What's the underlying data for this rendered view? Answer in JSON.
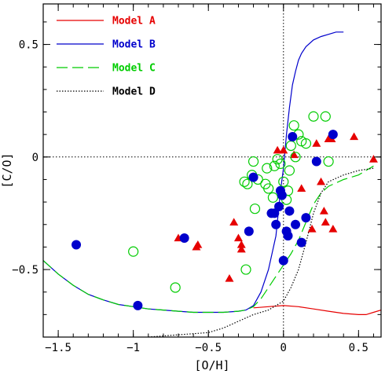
{
  "chart_data": {
    "type": "scatter",
    "title": "",
    "xlabel": "[O/H]",
    "ylabel": "[C/O]",
    "xlim": [
      -1.6,
      0.65
    ],
    "ylim": [
      -0.8,
      0.68
    ],
    "xticks": [
      -1.5,
      -1,
      -0.5,
      0,
      0.5
    ],
    "xtick_labels": [
      "−1.5",
      "−1",
      "−0.5",
      "0",
      "0.5"
    ],
    "yticks": [
      -0.5,
      0,
      0.5
    ],
    "ytick_labels": [
      "−0.5",
      "0",
      "0.5"
    ],
    "reference_lines": {
      "x": 0,
      "y": 0
    },
    "legend_position": "top-left",
    "models": [
      {
        "name": "Model A",
        "color": "#e60000",
        "dash": "solid",
        "points": [
          [
            -0.2,
            -0.67
          ],
          [
            -0.1,
            -0.665
          ],
          [
            0,
            -0.66
          ],
          [
            0.1,
            -0.665
          ],
          [
            0.2,
            -0.675
          ],
          [
            0.3,
            -0.685
          ],
          [
            0.4,
            -0.695
          ],
          [
            0.5,
            -0.7
          ],
          [
            0.55,
            -0.7
          ],
          [
            0.6,
            -0.69
          ],
          [
            0.65,
            -0.68
          ]
        ]
      },
      {
        "name": "Model B",
        "color": "#0000cc",
        "dash": "solid",
        "points": [
          [
            -1.6,
            -0.46
          ],
          [
            -1.5,
            -0.52
          ],
          [
            -1.4,
            -0.57
          ],
          [
            -1.3,
            -0.61
          ],
          [
            -1.2,
            -0.635
          ],
          [
            -1.1,
            -0.655
          ],
          [
            -1.0,
            -0.665
          ],
          [
            -0.9,
            -0.675
          ],
          [
            -0.8,
            -0.68
          ],
          [
            -0.7,
            -0.685
          ],
          [
            -0.6,
            -0.69
          ],
          [
            -0.5,
            -0.69
          ],
          [
            -0.4,
            -0.69
          ],
          [
            -0.3,
            -0.685
          ],
          [
            -0.25,
            -0.68
          ],
          [
            -0.2,
            -0.66
          ],
          [
            -0.15,
            -0.6
          ],
          [
            -0.1,
            -0.5
          ],
          [
            -0.05,
            -0.35
          ],
          [
            -0.02,
            -0.15
          ],
          [
            0,
            -0.05
          ],
          [
            0.02,
            0.1
          ],
          [
            0.04,
            0.22
          ],
          [
            0.06,
            0.32
          ],
          [
            0.08,
            0.38
          ],
          [
            0.1,
            0.43
          ],
          [
            0.12,
            0.46
          ],
          [
            0.15,
            0.49
          ],
          [
            0.2,
            0.52
          ],
          [
            0.25,
            0.535
          ],
          [
            0.3,
            0.545
          ],
          [
            0.35,
            0.555
          ],
          [
            0.4,
            0.555
          ]
        ]
      },
      {
        "name": "Model C",
        "color": "#00cc00",
        "dash": "dashed",
        "points": [
          [
            -1.6,
            -0.46
          ],
          [
            -1.5,
            -0.52
          ],
          [
            -1.4,
            -0.57
          ],
          [
            -1.3,
            -0.61
          ],
          [
            -1.2,
            -0.635
          ],
          [
            -1.1,
            -0.655
          ],
          [
            -1.0,
            -0.665
          ],
          [
            -0.9,
            -0.675
          ],
          [
            -0.8,
            -0.68
          ],
          [
            -0.7,
            -0.685
          ],
          [
            -0.6,
            -0.69
          ],
          [
            -0.5,
            -0.69
          ],
          [
            -0.4,
            -0.69
          ],
          [
            -0.3,
            -0.685
          ],
          [
            -0.25,
            -0.68
          ],
          [
            -0.2,
            -0.665
          ],
          [
            -0.15,
            -0.63
          ],
          [
            -0.1,
            -0.58
          ],
          [
            -0.05,
            -0.53
          ],
          [
            0,
            -0.48
          ],
          [
            0.05,
            -0.43
          ],
          [
            0.1,
            -0.37
          ],
          [
            0.15,
            -0.29
          ],
          [
            0.2,
            -0.21
          ],
          [
            0.25,
            -0.16
          ],
          [
            0.3,
            -0.13
          ],
          [
            0.4,
            -0.1
          ],
          [
            0.5,
            -0.08
          ],
          [
            0.6,
            -0.04
          ]
        ]
      },
      {
        "name": "Model D",
        "color": "#000000",
        "dash": "dotted",
        "points": [
          [
            -0.9,
            -0.8
          ],
          [
            -0.7,
            -0.79
          ],
          [
            -0.5,
            -0.78
          ],
          [
            -0.4,
            -0.76
          ],
          [
            -0.3,
            -0.73
          ],
          [
            -0.2,
            -0.7
          ],
          [
            -0.1,
            -0.68
          ],
          [
            0,
            -0.64
          ],
          [
            0.05,
            -0.58
          ],
          [
            0.1,
            -0.5
          ],
          [
            0.15,
            -0.38
          ],
          [
            0.2,
            -0.25
          ],
          [
            0.25,
            -0.16
          ],
          [
            0.3,
            -0.11
          ],
          [
            0.4,
            -0.08
          ],
          [
            0.5,
            -0.06
          ],
          [
            0.6,
            -0.05
          ]
        ]
      }
    ],
    "observations": {
      "triangles": {
        "color": "#e60000",
        "points": [
          [
            -0.7,
            -0.36
          ],
          [
            -0.57,
            -0.39
          ],
          [
            -0.58,
            -0.4
          ],
          [
            -0.36,
            -0.54
          ],
          [
            -0.33,
            -0.29
          ],
          [
            -0.3,
            -0.36
          ],
          [
            -0.28,
            -0.41
          ],
          [
            -0.28,
            -0.39
          ],
          [
            -0.04,
            0.03
          ],
          [
            0,
            0.03
          ],
          [
            0.07,
            0.01
          ],
          [
            0.12,
            -0.14
          ],
          [
            0.19,
            -0.32
          ],
          [
            0.22,
            0.06
          ],
          [
            0.25,
            -0.11
          ],
          [
            0.27,
            -0.24
          ],
          [
            0.28,
            -0.29
          ],
          [
            0.3,
            0.08
          ],
          [
            0.32,
            0.08
          ],
          [
            0.33,
            -0.32
          ],
          [
            0.47,
            0.09
          ],
          [
            0.6,
            -0.01
          ]
        ]
      },
      "filled_circles": {
        "color": "#0000cc",
        "points": [
          [
            -1.38,
            -0.39
          ],
          [
            -0.97,
            -0.66
          ],
          [
            -0.66,
            -0.36
          ],
          [
            -0.23,
            -0.33
          ],
          [
            -0.2,
            -0.09
          ],
          [
            -0.08,
            -0.25
          ],
          [
            -0.06,
            -0.25
          ],
          [
            -0.05,
            -0.3
          ],
          [
            -0.03,
            -0.22
          ],
          [
            -0.02,
            -0.15
          ],
          [
            -0.01,
            -0.17
          ],
          [
            0,
            -0.46
          ],
          [
            0.02,
            -0.33
          ],
          [
            0.03,
            -0.35
          ],
          [
            0.04,
            -0.24
          ],
          [
            0.06,
            0.09
          ],
          [
            0.08,
            -0.3
          ],
          [
            0.12,
            -0.38
          ],
          [
            0.15,
            -0.27
          ],
          [
            0.22,
            -0.02
          ],
          [
            0.33,
            0.1
          ]
        ]
      },
      "open_circles": {
        "color": "#00cc00",
        "points": [
          [
            -1.0,
            -0.42
          ],
          [
            -0.72,
            -0.58
          ],
          [
            -0.25,
            -0.5
          ],
          [
            -0.26,
            -0.11
          ],
          [
            -0.24,
            -0.12
          ],
          [
            -0.21,
            -0.08
          ],
          [
            -0.2,
            -0.02
          ],
          [
            -0.19,
            -0.23
          ],
          [
            -0.17,
            -0.1
          ],
          [
            -0.12,
            -0.12
          ],
          [
            -0.11,
            -0.05
          ],
          [
            -0.1,
            -0.14
          ],
          [
            -0.07,
            -0.18
          ],
          [
            -0.06,
            -0.04
          ],
          [
            -0.04,
            -0.01
          ],
          [
            -0.02,
            -0.03
          ],
          [
            0,
            -0.11
          ],
          [
            0.02,
            -0.19
          ],
          [
            0.03,
            -0.15
          ],
          [
            0.04,
            -0.06
          ],
          [
            0.05,
            0.05
          ],
          [
            0.07,
            0.14
          ],
          [
            0.08,
            0.0
          ],
          [
            0.1,
            0.1
          ],
          [
            0.12,
            0.07
          ],
          [
            0.15,
            0.06
          ],
          [
            0.2,
            0.18
          ],
          [
            0.28,
            0.18
          ],
          [
            0.3,
            -0.02
          ]
        ]
      }
    }
  }
}
